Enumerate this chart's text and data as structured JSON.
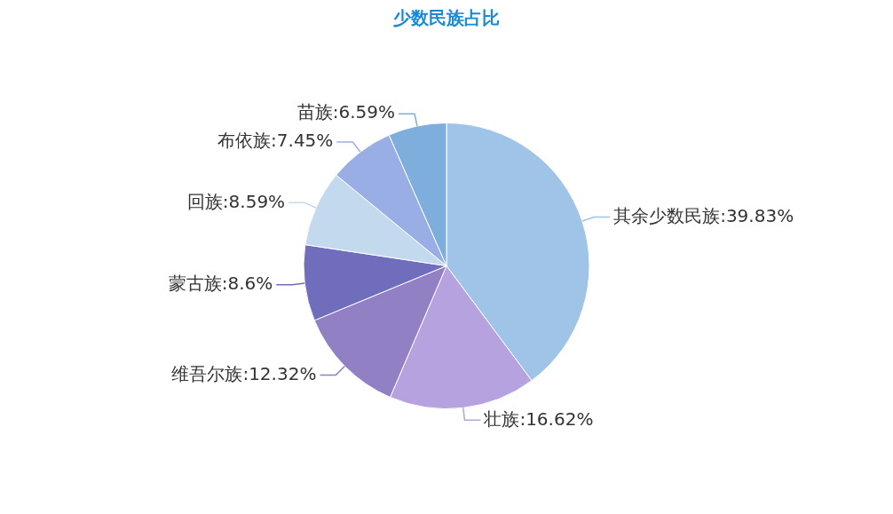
{
  "chart_data": {
    "type": "pie",
    "title": "少数民族占比",
    "categories": [
      "其余少数民族",
      "壮族",
      "维吾尔族",
      "蒙古族",
      "回族",
      "布依族",
      "苗族"
    ],
    "values": [
      39.83,
      16.62,
      12.32,
      8.6,
      8.59,
      7.45,
      6.59
    ],
    "colors": [
      "#a0c4e8",
      "#b5a2de",
      "#9180c4",
      "#706dbc",
      "#c3d9ee",
      "#9aaee6",
      "#7eaedb"
    ],
    "value_labels": [
      "39.83%",
      "16.62%",
      "12.32%",
      "8.6%",
      "8.59%",
      "7.45%",
      "6.59%"
    ],
    "legend": false
  }
}
